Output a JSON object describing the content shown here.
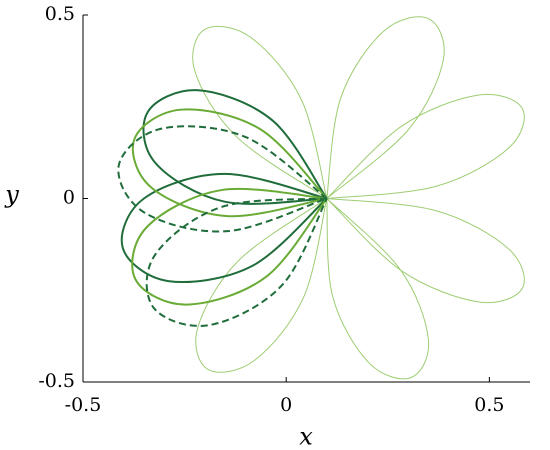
{
  "chart_data": {
    "type": "line",
    "xlabel": "x",
    "ylabel": "y",
    "xlim": [
      -0.5,
      0.6
    ],
    "ylim": [
      -0.5,
      0.5
    ],
    "xticks": [
      -0.5,
      0,
      0.5
    ],
    "yticks": [
      -0.5,
      0,
      0.5
    ],
    "series": [
      {
        "color": "#9dcd72",
        "linewidth": 1,
        "dash": "solid",
        "x": [
          0.1,
          0.038,
          -0.086,
          -0.2,
          -0.225,
          -0.12,
          0.1,
          null,
          0.1,
          0.301,
          0.387,
          0.35,
          0.239,
          0.134,
          0.1,
          null,
          0.1,
          0.368,
          0.547,
          0.581,
          0.474,
          0.284,
          0.1,
          null,
          0.1,
          0.284,
          0.474,
          0.581,
          0.547,
          0.368,
          0.1,
          null,
          0.1,
          0.114,
          0.203,
          0.307,
          0.35,
          0.281,
          0.1,
          null,
          0.1,
          -0.117,
          -0.218,
          -0.192,
          -0.078,
          0.043,
          0.1
        ],
        "values": [
          0,
          0.268,
          0.438,
          0.461,
          0.348,
          0.166,
          0,
          null,
          0,
          0.188,
          0.38,
          0.49,
          0.455,
          0.273,
          0,
          null,
          0,
          0.033,
          0.137,
          0.245,
          0.282,
          0.197,
          0,
          null,
          0,
          -0.197,
          -0.282,
          -0.245,
          -0.137,
          -0.033,
          0,
          null,
          0,
          -0.265,
          -0.447,
          -0.488,
          -0.385,
          -0.194,
          0,
          null,
          0,
          -0.169,
          -0.354,
          -0.466,
          -0.441,
          -0.269,
          0
        ]
      },
      {
        "color": "#1f6d3a",
        "linewidth": 2,
        "dash": "solid",
        "x": [
          0.1,
          -0.033,
          -0.217,
          -0.341,
          -0.322,
          -0.15,
          0.1,
          null,
          0.1,
          -0.151,
          -0.35,
          -0.402,
          -0.29,
          -0.084,
          0.1
        ],
        "values": [
          0,
          0.212,
          0.295,
          0.235,
          0.097,
          -0.009,
          0,
          null,
          0,
          0.067,
          0,
          -0.135,
          -0.225,
          -0.184,
          0
        ]
      },
      {
        "color": "#6aab36",
        "linewidth": 2,
        "dash": "solid",
        "x": [
          0.1,
          -0.064,
          -0.259,
          -0.373,
          -0.332,
          -0.145,
          0.1,
          null,
          0.1,
          -0.159,
          -0.343,
          -0.371,
          -0.245,
          -0.049,
          0.1
        ],
        "values": [
          0,
          0.189,
          0.242,
          0.163,
          0.03,
          -0.048,
          0,
          null,
          0,
          0.023,
          -0.078,
          -0.22,
          -0.289,
          -0.213,
          0
        ]
      },
      {
        "color": "#1f6d3a",
        "linewidth": 2,
        "dash": "dashed",
        "x": [
          0.1,
          -0.099,
          -0.308,
          -0.412,
          -0.348,
          -0.144,
          0.1,
          null,
          0.1,
          -0.159,
          -0.323,
          -0.326,
          -0.189,
          -0.01,
          0.1
        ],
        "values": [
          0,
          0.167,
          0.19,
          0.09,
          -0.039,
          -0.089,
          0,
          null,
          0,
          -0.023,
          -0.154,
          -0.298,
          -0.345,
          -0.236,
          0
        ]
      }
    ]
  }
}
